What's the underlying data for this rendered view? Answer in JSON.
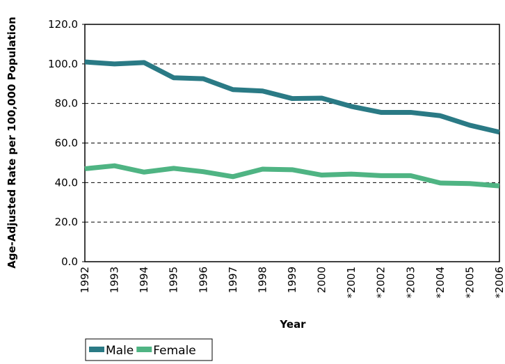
{
  "chart_data": {
    "type": "line",
    "x_label": "Year",
    "y_label": "Age-Adjusted Rate per 100,000 Population",
    "categories": [
      "1992",
      "1993",
      "1994",
      "1995",
      "1996",
      "1997",
      "1998",
      "1999",
      "2000",
      "*2001",
      "*2002",
      "*2003",
      "*2004",
      "*2005",
      "*2006"
    ],
    "series": [
      {
        "name": "Male",
        "color": "#2a7a85",
        "values": [
          101,
          100,
          100.7,
          93,
          92.5,
          87,
          86.3,
          82.5,
          82.7,
          78.5,
          75.5,
          75.5,
          73.8,
          69,
          65.5
        ]
      },
      {
        "name": "Female",
        "color": "#4fb483",
        "values": [
          47,
          48.5,
          45.3,
          47.2,
          45.5,
          43,
          46.8,
          46.5,
          43.8,
          44.3,
          43.5,
          43.5,
          39.8,
          39.5,
          38.3
        ]
      }
    ],
    "ylim": [
      0,
      120
    ],
    "yticks": [
      {
        "value": 0,
        "label": "0.0"
      },
      {
        "value": 20,
        "label": "20.0"
      },
      {
        "value": 40,
        "label": "40.0"
      },
      {
        "value": 60,
        "label": "60.0"
      },
      {
        "value": 80,
        "label": "80.0"
      },
      {
        "value": 100,
        "label": "100.0"
      },
      {
        "value": 120,
        "label": "120.0"
      }
    ],
    "grid": true,
    "legend": "bottom-left"
  }
}
